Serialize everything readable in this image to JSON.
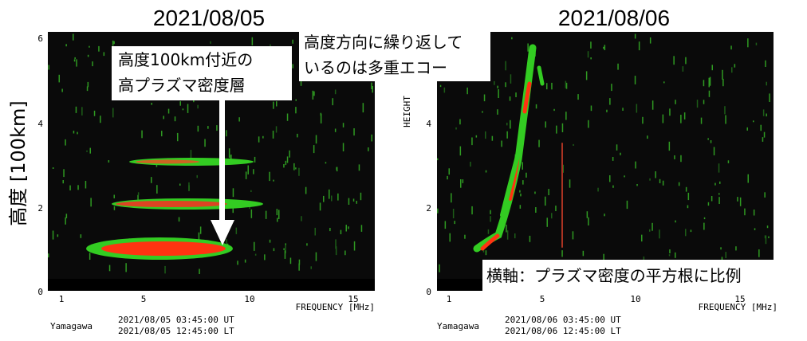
{
  "y_axis_label": "高度 [100km]",
  "panels": [
    {
      "title": "2021/08/05",
      "y_ticks": [
        "6",
        "4",
        "2",
        "0"
      ],
      "x_ticks": [
        "1",
        "5",
        "10",
        "15"
      ],
      "x_axis_label": "FREQUENCY [MHz]",
      "station": "Yamagawa",
      "ut": "2021/08/05 03:45:00 UT",
      "lt": "2021/08/05 12:45:00 LT"
    },
    {
      "title": "2021/08/06",
      "y_axis_label": "HEIGHT",
      "y_ticks": [
        "4",
        "2",
        "0"
      ],
      "x_ticks": [
        "1",
        "5",
        "10",
        "15"
      ],
      "x_axis_label": "FREQUENCY [MHz]",
      "station": "Yamagawa",
      "ut": "2021/08/06 03:45:00 UT",
      "lt": "2021/08/06 12:45:00 LT"
    }
  ],
  "annotations": [
    {
      "lines": [
        "高度100km付近の",
        "高プラズマ密度層"
      ]
    },
    {
      "lines": [
        "高度方向に繰り返して",
        "いるのは多重エコー"
      ]
    },
    {
      "lines": [
        "横軸：プラズマ密度の平方根に比例"
      ]
    }
  ]
}
